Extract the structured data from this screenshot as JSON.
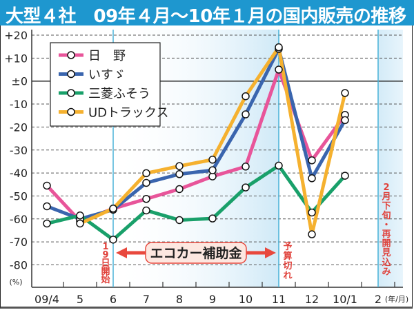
{
  "title": "大型４社　09年４月～10年１月の国内販売の推移",
  "chart_data": {
    "type": "line",
    "title": "大型４社　09年４月～10年１月の国内販売の推移",
    "xlabel": "(年/月)",
    "ylabel": "(%)",
    "ylim": [
      -85,
      22
    ],
    "yticks": [
      20,
      10,
      0,
      -10,
      -20,
      -30,
      -40,
      -50,
      -60,
      -70,
      -80
    ],
    "ytick_labels": [
      "+20",
      "+10",
      "±0",
      "-10",
      "-20",
      "-30",
      "-40",
      "-50",
      "-60",
      "-70",
      "-80"
    ],
    "categories": [
      "09/4",
      "5",
      "6",
      "7",
      "8",
      "9",
      "10",
      "11",
      "12",
      "10/1",
      "2"
    ],
    "grid": "dashed horizontal",
    "legend_position": "top-left",
    "series": [
      {
        "name": "日　野",
        "color": "#e8559a",
        "values": [
          -45.5,
          -61,
          -55.5,
          -51.3,
          -47,
          -41.5,
          -37.2,
          5,
          -34.5,
          -14.7,
          null
        ]
      },
      {
        "name": "いすゞ",
        "color": "#3a65ae",
        "values": [
          -54.5,
          -60,
          -56,
          -44.3,
          -40.5,
          -38.8,
          -14.5,
          14,
          -42.3,
          -17,
          null
        ]
      },
      {
        "name": "三菱ふそう",
        "color": "#19a06a",
        "values": [
          -62,
          -58.5,
          -69,
          -56.3,
          -60.5,
          -59.8,
          -46.3,
          -36.8,
          -57.2,
          -41.2,
          null
        ]
      },
      {
        "name": "UDトラックス",
        "color": "#f5b12f",
        "values": [
          null,
          -62,
          -55.5,
          -40.1,
          -37,
          -34.2,
          -6.6,
          14.7,
          -66.7,
          -5.2,
          null
        ]
      }
    ],
    "annotations": {
      "subsidy_label": "エコカー補助金",
      "start_label": "19日開始",
      "start_label_chars": [
        "1",
        "9",
        "日",
        "開",
        "始"
      ],
      "end_label": "予算切れ",
      "end_label_chars": [
        "予",
        "算",
        "切",
        "れ"
      ],
      "resume_label": "2月下旬・再開見込み",
      "resume_label_chars": [
        "2",
        "月",
        "下",
        "旬",
        "・",
        "再",
        "開",
        "見",
        "込",
        "み"
      ],
      "start_month": "6",
      "end_month": "11",
      "resume_month": "2"
    },
    "colors": {
      "accent": "#1e97cf",
      "annotation_red": "#e0413a",
      "shade": "#cfe9f7"
    }
  }
}
